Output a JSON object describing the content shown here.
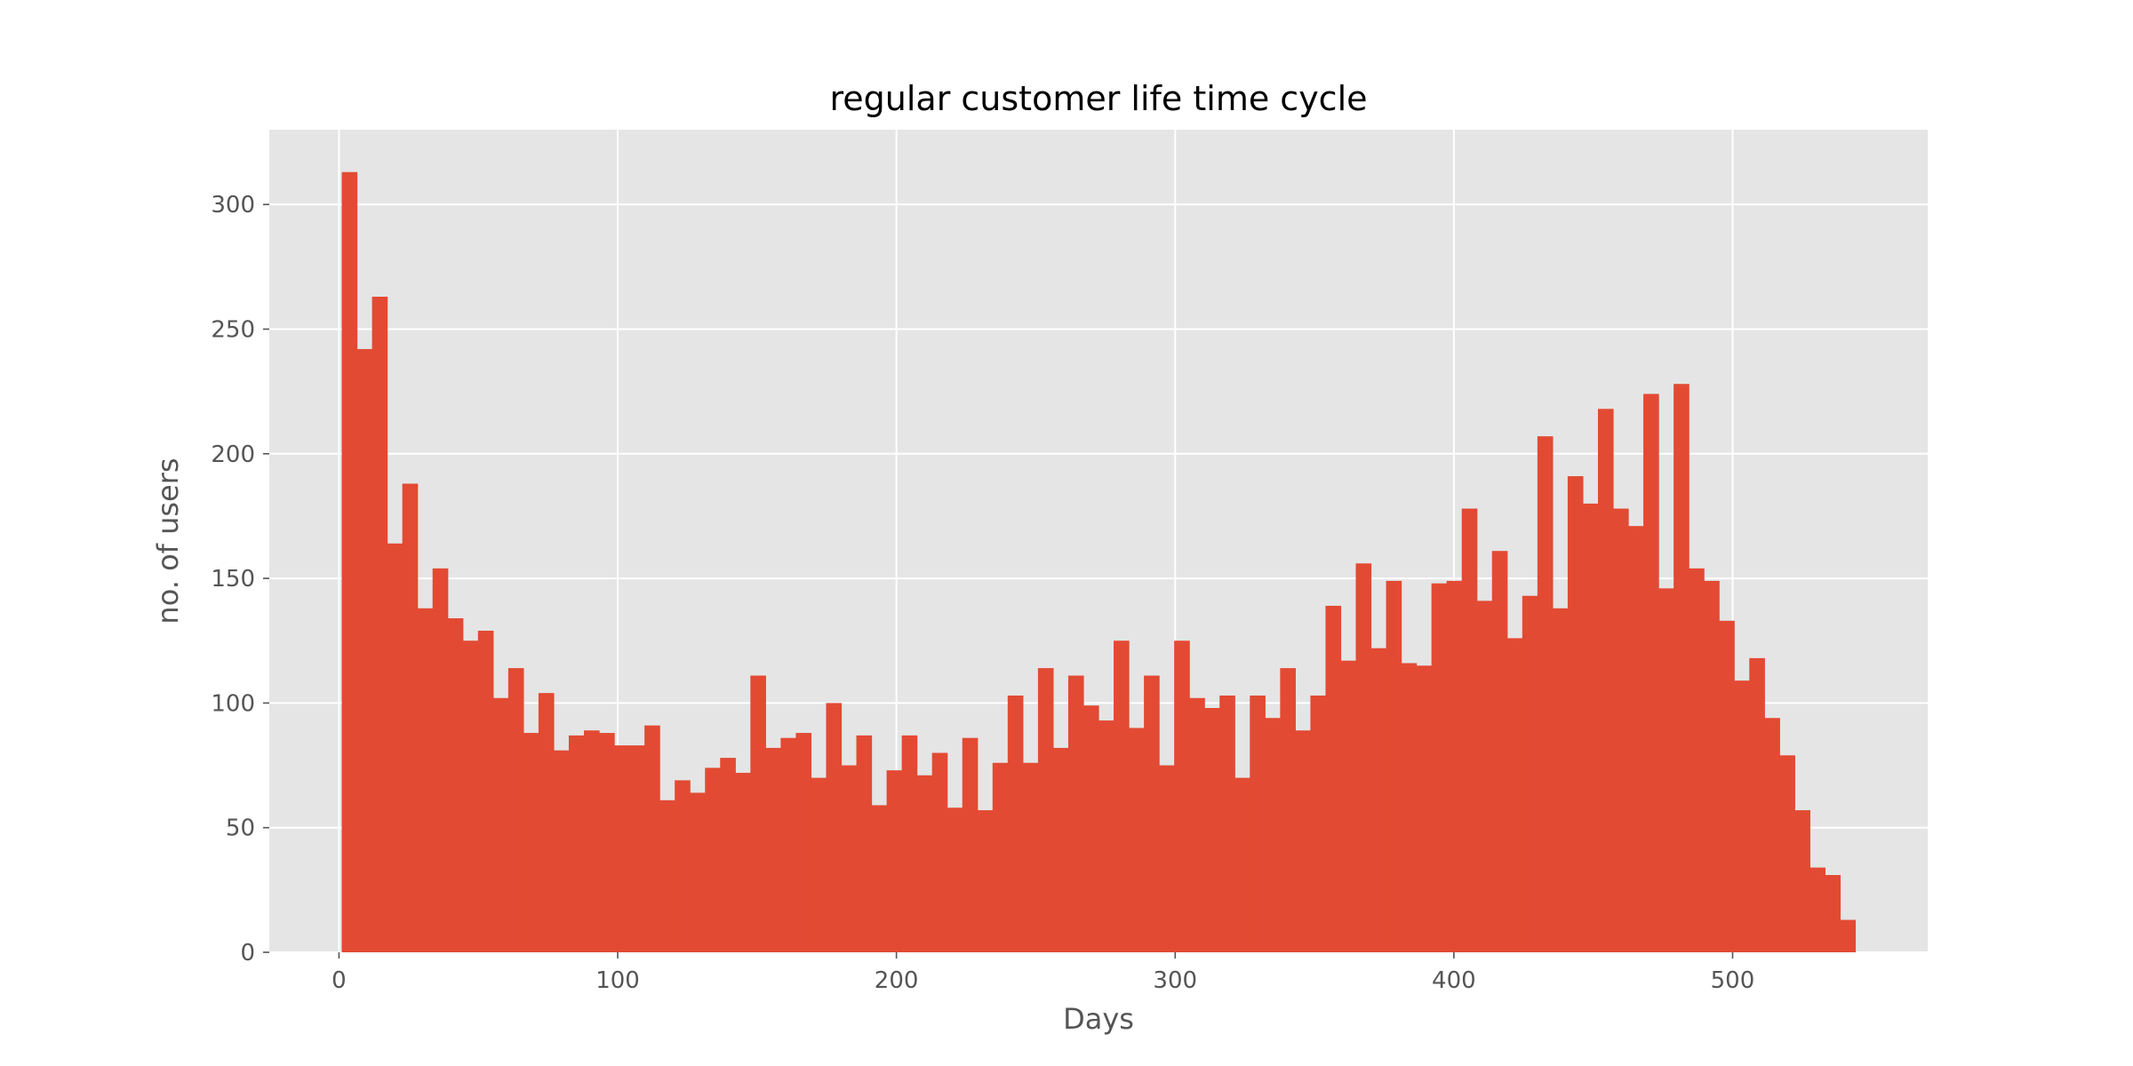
{
  "chart_data": {
    "type": "bar",
    "title": "regular customer life time cycle",
    "xlabel": "Days",
    "ylabel": "no. of users",
    "xlim": [
      -25,
      570
    ],
    "ylim": [
      0,
      330
    ],
    "xticks": [
      0,
      100,
      200,
      300,
      400,
      500
    ],
    "yticks": [
      0,
      50,
      100,
      150,
      200,
      250,
      300
    ],
    "grid": true,
    "bin_start": 1,
    "bin_width": 5.43,
    "values": [
      313,
      242,
      263,
      164,
      188,
      138,
      154,
      134,
      125,
      129,
      102,
      114,
      88,
      104,
      81,
      87,
      89,
      88,
      83,
      83,
      91,
      61,
      69,
      64,
      74,
      78,
      72,
      111,
      82,
      86,
      88,
      70,
      100,
      75,
      87,
      59,
      73,
      87,
      71,
      80,
      58,
      86,
      57,
      76,
      103,
      76,
      114,
      82,
      111,
      99,
      93,
      125,
      90,
      111,
      75,
      125,
      102,
      98,
      103,
      70,
      103,
      94,
      114,
      89,
      103,
      139,
      117,
      156,
      122,
      149,
      116,
      115,
      148,
      149,
      178,
      141,
      161,
      126,
      143,
      207,
      138,
      191,
      180,
      218,
      178,
      171,
      224,
      146,
      228,
      154,
      149,
      133,
      109,
      118,
      94,
      79,
      57,
      34,
      31,
      13
    ],
    "colors": {
      "bar": "#e24a33",
      "plot_bg": "#e5e5e5",
      "grid": "#ffffff",
      "tick_text": "#555555",
      "label_text": "#555555",
      "title_text": "#000000"
    }
  }
}
